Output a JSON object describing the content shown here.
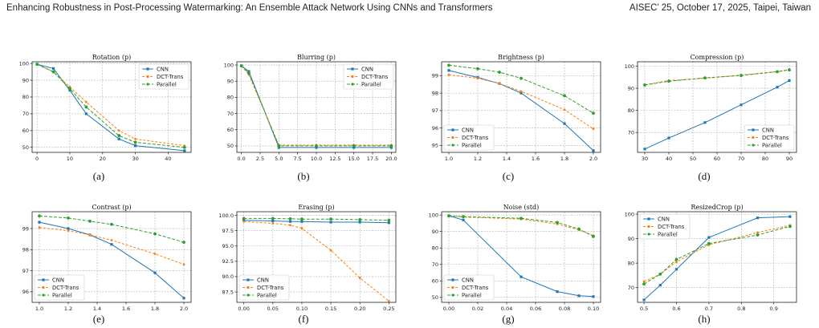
{
  "header": {
    "left": "Enhancing Robustness in Post-Processing Watermarking: An Ensemble Attack Network Using CNNs and Transformers",
    "right": "AISEC’ 25, October 17, 2025, Taipei, Taiwan"
  },
  "colors": {
    "cnn": "#1f77b4",
    "dct": "#ff7f0e",
    "par": "#2ca02c"
  },
  "chart_data": [
    {
      "type": "line",
      "sublabel": "(a)",
      "title": "Rotation (p)",
      "xlim": [
        -1.5,
        47
      ],
      "ylim": [
        47,
        101
      ],
      "xticks": [
        0,
        10,
        20,
        30,
        40
      ],
      "yticks": [
        50,
        60,
        70,
        80,
        90,
        100
      ],
      "xtick_labels": [
        "0",
        "10",
        "20",
        "30",
        "40"
      ],
      "ytick_labels": [
        "50",
        "60",
        "70",
        "80",
        "90",
        "100"
      ],
      "legend": {
        "position": "top-right"
      },
      "series": [
        {
          "name": "CNN",
          "x": [
            0,
            5,
            10,
            15,
            25,
            30,
            45
          ],
          "y": [
            99.5,
            97,
            84,
            70,
            55,
            51,
            48
          ]
        },
        {
          "name": "DCT-Trans",
          "x": [
            0,
            5,
            10,
            15,
            25,
            30,
            45
          ],
          "y": [
            99.5,
            95,
            86,
            77,
            60,
            55,
            51
          ]
        },
        {
          "name": "Parallel",
          "x": [
            0,
            5,
            10,
            15,
            25,
            30,
            45
          ],
          "y": [
            99.5,
            95,
            85,
            74,
            57,
            53,
            50
          ]
        }
      ]
    },
    {
      "type": "line",
      "sublabel": "(b)",
      "title": "Blurring (p)",
      "xlim": [
        -0.6,
        20.6
      ],
      "ylim": [
        46,
        102
      ],
      "xticks": [
        0,
        2.5,
        5,
        7.5,
        10,
        12.5,
        15,
        17.5,
        20
      ],
      "yticks": [
        50,
        60,
        70,
        80,
        90,
        100
      ],
      "xtick_labels": [
        "0.0",
        "2.5",
        "5.0",
        "7.5",
        "10.0",
        "12.5",
        "15.0",
        "17.5",
        "20.0"
      ],
      "ytick_labels": [
        "50",
        "60",
        "70",
        "80",
        "90",
        "100"
      ],
      "legend": {
        "position": "top-right"
      },
      "series": [
        {
          "name": "CNN",
          "x": [
            0,
            1,
            5,
            10,
            15,
            20
          ],
          "y": [
            99.5,
            96,
            49,
            49,
            49,
            49
          ]
        },
        {
          "name": "DCT-Trans",
          "x": [
            0,
            1,
            5,
            10,
            15,
            20
          ],
          "y": [
            99.5,
            94,
            50.5,
            50.5,
            50.5,
            50.5
          ]
        },
        {
          "name": "Parallel",
          "x": [
            0,
            1,
            5,
            10,
            15,
            20
          ],
          "y": [
            99.5,
            95,
            50,
            50,
            50,
            50
          ]
        }
      ]
    },
    {
      "type": "line",
      "sublabel": "(c)",
      "title": "Brightness (p)",
      "xlim": [
        0.95,
        2.05
      ],
      "ylim": [
        94.6,
        99.8
      ],
      "xticks": [
        1.0,
        1.2,
        1.4,
        1.6,
        1.8,
        2.0
      ],
      "yticks": [
        95,
        96,
        97,
        98,
        99
      ],
      "xtick_labels": [
        "1.0",
        "1.2",
        "1.4",
        "1.6",
        "1.8",
        "2.0"
      ],
      "ytick_labels": [
        "95",
        "96",
        "97",
        "98",
        "99"
      ],
      "legend": {
        "position": "bottom-left"
      },
      "series": [
        {
          "name": "CNN",
          "x": [
            1.0,
            1.2,
            1.35,
            1.5,
            1.8,
            2.0
          ],
          "y": [
            99.3,
            98.9,
            98.55,
            98.0,
            96.25,
            94.7
          ]
        },
        {
          "name": "DCT-Trans",
          "x": [
            1.0,
            1.2,
            1.35,
            1.5,
            1.8,
            2.0
          ],
          "y": [
            99.05,
            98.85,
            98.55,
            98.1,
            97.05,
            95.95
          ]
        },
        {
          "name": "Parallel",
          "x": [
            1.0,
            1.2,
            1.35,
            1.5,
            1.8,
            2.0
          ],
          "y": [
            99.6,
            99.4,
            99.2,
            98.85,
            97.85,
            96.85
          ]
        }
      ]
    },
    {
      "type": "line",
      "sublabel": "(d)",
      "title": "Compression (p)",
      "xlim": [
        27,
        93
      ],
      "ylim": [
        61,
        102
      ],
      "xticks": [
        30,
        40,
        50,
        60,
        70,
        80,
        90
      ],
      "yticks": [
        70,
        80,
        90,
        100
      ],
      "xtick_labels": [
        "30",
        "40",
        "50",
        "60",
        "70",
        "80",
        "90"
      ],
      "ytick_labels": [
        "70",
        "80",
        "90",
        "100"
      ],
      "legend": {
        "position": "bottom-right"
      },
      "series": [
        {
          "name": "CNN",
          "x": [
            30,
            40,
            55,
            70,
            85,
            90
          ],
          "y": [
            62.5,
            67.5,
            74.5,
            82.5,
            90.5,
            93.5
          ]
        },
        {
          "name": "DCT-Trans",
          "x": [
            30,
            40,
            55,
            70,
            85,
            90
          ],
          "y": [
            91.5,
            93.5,
            94.5,
            96,
            97.5,
            98.5
          ]
        },
        {
          "name": "Parallel",
          "x": [
            30,
            40,
            55,
            70,
            85,
            90
          ],
          "y": [
            91.5,
            93.2,
            94.7,
            95.8,
            97.5,
            98.3
          ]
        }
      ]
    },
    {
      "type": "line",
      "sublabel": "(e)",
      "title": "Contrast (p)",
      "xlim": [
        0.95,
        2.05
      ],
      "ylim": [
        95.5,
        99.8
      ],
      "xticks": [
        1.0,
        1.2,
        1.4,
        1.6,
        1.8,
        2.0
      ],
      "yticks": [
        96,
        97,
        98,
        99
      ],
      "xtick_labels": [
        "1.0",
        "1.2",
        "1.4",
        "1.6",
        "1.8",
        "2.0"
      ],
      "ytick_labels": [
        "96",
        "97",
        "98",
        "99"
      ],
      "legend": {
        "position": "bottom-left"
      },
      "series": [
        {
          "name": "CNN",
          "x": [
            1.0,
            1.2,
            1.35,
            1.5,
            1.8,
            2.0
          ],
          "y": [
            99.3,
            99.0,
            98.7,
            98.25,
            96.9,
            95.7
          ]
        },
        {
          "name": "DCT-Trans",
          "x": [
            1.0,
            1.2,
            1.35,
            1.5,
            1.8,
            2.0
          ],
          "y": [
            99.05,
            98.9,
            98.7,
            98.45,
            97.8,
            97.3
          ]
        },
        {
          "name": "Parallel",
          "x": [
            1.0,
            1.2,
            1.35,
            1.5,
            1.8,
            2.0
          ],
          "y": [
            99.6,
            99.5,
            99.35,
            99.2,
            98.75,
            98.35
          ]
        }
      ]
    },
    {
      "type": "line",
      "sublabel": "(f)",
      "title": "Erasing (p)",
      "xlim": [
        -0.012,
        0.262
      ],
      "ylim": [
        85.8,
        100.6
      ],
      "xticks": [
        0,
        0.05,
        0.1,
        0.15,
        0.2,
        0.25
      ],
      "yticks": [
        87.5,
        90,
        92.5,
        95,
        97.5,
        100
      ],
      "xtick_labels": [
        "0.00",
        "0.05",
        "0.10",
        "0.15",
        "0.20",
        "0.25"
      ],
      "ytick_labels": [
        "87.5",
        "90.0",
        "92.5",
        "95.0",
        "97.5",
        "100.0"
      ],
      "legend": {
        "position": "bottom-left"
      },
      "series": [
        {
          "name": "CNN",
          "x": [
            0,
            0.05,
            0.08,
            0.1,
            0.15,
            0.2,
            0.25
          ],
          "y": [
            99.2,
            99.1,
            99.0,
            99.0,
            98.9,
            98.9,
            98.8
          ]
        },
        {
          "name": "DCT-Trans",
          "x": [
            0,
            0.05,
            0.08,
            0.1,
            0.15,
            0.2,
            0.25
          ],
          "y": [
            99.0,
            98.7,
            98.4,
            97.9,
            94.3,
            89.8,
            86.0
          ]
        },
        {
          "name": "Parallel",
          "x": [
            0,
            0.05,
            0.08,
            0.1,
            0.15,
            0.2,
            0.25
          ],
          "y": [
            99.5,
            99.5,
            99.45,
            99.4,
            99.4,
            99.3,
            99.2
          ]
        }
      ]
    },
    {
      "type": "line",
      "sublabel": "(g)",
      "title": "Noise (std)",
      "xlim": [
        -0.005,
        0.105
      ],
      "ylim": [
        47,
        102
      ],
      "xticks": [
        0,
        0.02,
        0.04,
        0.06,
        0.08,
        0.1
      ],
      "yticks": [
        50,
        60,
        70,
        80,
        90,
        100
      ],
      "xtick_labels": [
        "0.00",
        "0.02",
        "0.04",
        "0.06",
        "0.08",
        "0.10"
      ],
      "ytick_labels": [
        "50",
        "60",
        "70",
        "80",
        "90",
        "100"
      ],
      "legend": {
        "position": "bottom-left"
      },
      "series": [
        {
          "name": "CNN",
          "x": [
            0,
            0.01,
            0.05,
            0.075,
            0.09,
            0.1
          ],
          "y": [
            99.5,
            97,
            62.5,
            53.5,
            51,
            50.5
          ]
        },
        {
          "name": "DCT-Trans",
          "x": [
            0,
            0.01,
            0.05,
            0.075,
            0.09,
            0.1
          ],
          "y": [
            99.5,
            98.8,
            97.5,
            94.5,
            91,
            87.5
          ]
        },
        {
          "name": "Parallel",
          "x": [
            0,
            0.01,
            0.05,
            0.075,
            0.09,
            0.1
          ],
          "y": [
            99.5,
            99,
            98,
            95.5,
            91.5,
            87
          ]
        }
      ]
    },
    {
      "type": "line",
      "sublabel": "(h)",
      "title": "ResizedCrop (p)",
      "xlim": [
        0.48,
        0.97
      ],
      "ylim": [
        64,
        101
      ],
      "xticks": [
        0.5,
        0.6,
        0.7,
        0.8,
        0.9
      ],
      "yticks": [
        70,
        80,
        90,
        100
      ],
      "xtick_labels": [
        "0.5",
        "0.6",
        "0.7",
        "0.8",
        "0.9"
      ],
      "ytick_labels": [
        "70",
        "80",
        "90",
        "100"
      ],
      "legend": {
        "position": "top-left"
      },
      "series": [
        {
          "name": "CNN",
          "x": [
            0.5,
            0.55,
            0.6,
            0.7,
            0.85,
            0.95
          ],
          "y": [
            65,
            71,
            77.5,
            90.5,
            98.5,
            99
          ]
        },
        {
          "name": "DCT-Trans",
          "x": [
            0.5,
            0.55,
            0.6,
            0.7,
            0.85,
            0.95
          ],
          "y": [
            72.5,
            75.5,
            80.5,
            87.5,
            92.5,
            95.5
          ]
        },
        {
          "name": "Parallel",
          "x": [
            0.5,
            0.55,
            0.6,
            0.7,
            0.85,
            0.95
          ],
          "y": [
            71.5,
            75.5,
            81.5,
            88,
            91.5,
            95
          ]
        }
      ]
    }
  ]
}
